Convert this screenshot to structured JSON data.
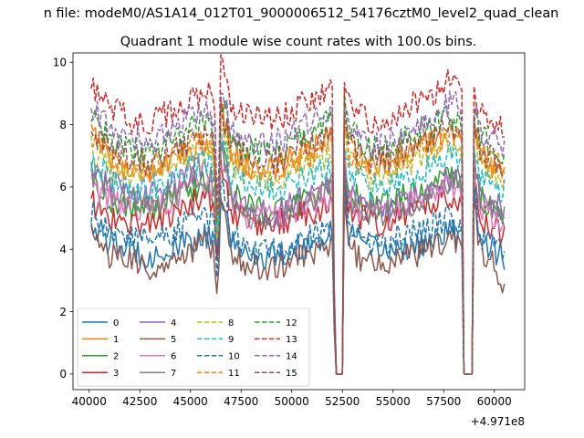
{
  "chart_data": {
    "type": "line",
    "suptitle": "n file: modeM0/AS1A14_012T01_9000006512_54176cztM0_level2_quad_clean",
    "title": "Quadrant 1 module wise count rates with 100.0s bins.",
    "xlabel": "",
    "ylabel": "",
    "x_offset_label": "+4.971e8",
    "xlim": [
      39200,
      61500
    ],
    "ylim": [
      -0.5,
      10.3
    ],
    "xticks": [
      40000,
      42500,
      45000,
      47500,
      50000,
      52500,
      55000,
      57500,
      60000
    ],
    "xtick_labels": [
      "40000",
      "42500",
      "45000",
      "47500",
      "50000",
      "52500",
      "55000",
      "57500",
      "60000"
    ],
    "yticks": [
      0,
      2,
      4,
      6,
      8,
      10
    ],
    "ytick_labels": [
      "0",
      "2",
      "4",
      "6",
      "8",
      "10"
    ],
    "grid": false,
    "legend_position": "lower-left",
    "legend_columns": 4,
    "x_start": 40100,
    "x_end": 60500,
    "bin_seconds": 100,
    "anchor_x": [
      40100,
      41000,
      42000,
      43000,
      44000,
      45000,
      45600,
      46000,
      46200,
      46350,
      46500,
      47000,
      48000,
      49000,
      50000,
      51000,
      52000,
      52050,
      52150,
      52300,
      52550,
      52600,
      52800,
      54000,
      55000,
      56000,
      57000,
      57800,
      58200,
      58400,
      58500,
      58950,
      59000,
      59300,
      60000,
      60500
    ],
    "series": [
      {
        "name": "0",
        "color": "#1f77b4",
        "dash": "solid",
        "values": [
          4.9,
          4.2,
          4.0,
          3.8,
          3.9,
          4.3,
          4.4,
          4.3,
          4.0,
          3.5,
          6.0,
          4.2,
          3.8,
          3.8,
          4.0,
          4.2,
          4.5,
          3.0,
          0.0,
          0.0,
          0.0,
          6.5,
          4.5,
          4.0,
          4.0,
          4.1,
          4.2,
          4.6,
          4.5,
          4.3,
          0.0,
          0.0,
          6.0,
          4.4,
          4.0,
          3.7
        ]
      },
      {
        "name": "1",
        "color": "#ff7f0e",
        "dash": "solid",
        "values": [
          8.0,
          7.0,
          6.5,
          6.5,
          6.8,
          7.2,
          7.4,
          7.3,
          6.8,
          4.0,
          8.5,
          7.2,
          6.6,
          6.6,
          6.9,
          7.3,
          7.6,
          5.0,
          0.0,
          0.0,
          0.0,
          8.4,
          7.4,
          6.6,
          6.9,
          7.2,
          7.5,
          7.8,
          7.7,
          7.4,
          0.0,
          0.0,
          8.0,
          7.0,
          6.7,
          6.5
        ]
      },
      {
        "name": "2",
        "color": "#2ca02c",
        "dash": "solid",
        "values": [
          6.3,
          5.6,
          5.3,
          5.3,
          5.5,
          5.9,
          6.1,
          6.0,
          5.6,
          3.8,
          7.5,
          5.8,
          5.3,
          5.2,
          5.4,
          5.7,
          6.0,
          4.5,
          0.0,
          0.0,
          0.0,
          7.2,
          5.8,
          5.4,
          5.6,
          5.8,
          6.1,
          6.3,
          6.2,
          6.0,
          0.0,
          0.0,
          7.0,
          5.6,
          5.3,
          5.0
        ]
      },
      {
        "name": "3",
        "color": "#d62728",
        "dash": "solid",
        "values": [
          5.5,
          5.0,
          4.8,
          4.9,
          5.0,
          5.5,
          5.6,
          5.5,
          5.0,
          3.2,
          6.8,
          5.2,
          4.8,
          4.8,
          5.0,
          5.2,
          5.5,
          4.0,
          0.0,
          0.0,
          0.0,
          6.6,
          5.3,
          4.8,
          5.0,
          5.2,
          5.5,
          5.7,
          5.6,
          5.4,
          0.0,
          0.0,
          6.4,
          5.0,
          4.7,
          4.5
        ]
      },
      {
        "name": "4",
        "color": "#9467bd",
        "dash": "solid",
        "values": [
          6.6,
          6.2,
          5.6,
          5.7,
          6.0,
          6.5,
          6.6,
          6.5,
          6.1,
          3.6,
          7.4,
          5.8,
          5.2,
          5.1,
          5.4,
          5.8,
          6.2,
          4.5,
          0.0,
          0.0,
          0.0,
          7.0,
          5.8,
          5.2,
          5.3,
          5.6,
          6.0,
          6.3,
          6.2,
          6.0,
          0.0,
          0.0,
          7.0,
          5.8,
          5.4,
          5.2
        ]
      },
      {
        "name": "5",
        "color": "#8c564b",
        "dash": "solid",
        "values": [
          4.5,
          3.8,
          3.6,
          3.4,
          3.5,
          4.0,
          4.2,
          4.1,
          3.6,
          2.2,
          5.5,
          3.8,
          3.4,
          3.4,
          3.6,
          3.9,
          4.2,
          2.8,
          0.0,
          0.0,
          0.0,
          6.0,
          4.0,
          3.5,
          3.6,
          3.8,
          4.0,
          4.3,
          4.2,
          4.0,
          0.0,
          0.0,
          5.8,
          3.9,
          3.6,
          2.6
        ]
      },
      {
        "name": "6",
        "color": "#e377c2",
        "dash": "solid",
        "values": [
          6.0,
          5.6,
          5.4,
          5.3,
          5.6,
          6.0,
          6.1,
          6.0,
          5.6,
          3.5,
          7.0,
          5.5,
          5.0,
          5.0,
          5.2,
          5.5,
          5.8,
          4.2,
          0.0,
          0.0,
          0.0,
          6.8,
          5.5,
          5.0,
          5.2,
          5.5,
          5.7,
          6.0,
          5.9,
          5.7,
          0.0,
          0.0,
          6.6,
          5.4,
          5.1,
          4.9
        ]
      },
      {
        "name": "7",
        "color": "#7f7f7f",
        "dash": "solid",
        "values": [
          6.4,
          5.9,
          5.6,
          5.5,
          5.8,
          6.2,
          6.3,
          6.2,
          5.8,
          3.4,
          7.2,
          5.6,
          5.1,
          5.0,
          5.3,
          5.6,
          5.9,
          4.3,
          0.0,
          0.0,
          0.0,
          6.9,
          5.6,
          5.1,
          5.3,
          5.5,
          5.8,
          6.1,
          6.0,
          5.8,
          0.0,
          0.0,
          6.8,
          5.5,
          5.2,
          5.0
        ]
      },
      {
        "name": "8",
        "color": "#bcbd22",
        "dash": "dashed",
        "values": [
          7.2,
          6.7,
          6.3,
          6.3,
          6.5,
          6.9,
          7.1,
          7.0,
          6.5,
          3.9,
          8.0,
          6.8,
          6.3,
          6.2,
          6.5,
          6.8,
          7.1,
          4.8,
          0.0,
          0.0,
          0.0,
          7.9,
          6.9,
          6.3,
          6.5,
          6.8,
          7.1,
          7.4,
          7.3,
          7.0,
          0.0,
          0.0,
          7.6,
          6.7,
          6.4,
          6.2
        ]
      },
      {
        "name": "9",
        "color": "#17becf",
        "dash": "dashed",
        "values": [
          6.9,
          6.3,
          6.0,
          6.0,
          6.2,
          6.6,
          6.8,
          6.7,
          6.2,
          3.8,
          7.6,
          6.4,
          6.0,
          5.9,
          6.1,
          6.4,
          6.7,
          4.6,
          0.0,
          0.0,
          0.0,
          7.4,
          6.5,
          6.0,
          6.1,
          6.4,
          6.7,
          7.0,
          6.9,
          6.6,
          0.0,
          0.0,
          7.2,
          6.3,
          6.0,
          5.8
        ]
      },
      {
        "name": "10",
        "color": "#1f77b4",
        "dash": "dashed",
        "values": [
          5.2,
          4.6,
          4.4,
          4.3,
          4.5,
          4.9,
          5.0,
          4.9,
          4.5,
          3.0,
          6.2,
          4.4,
          4.0,
          3.9,
          4.1,
          4.4,
          4.7,
          3.3,
          0.0,
          0.0,
          0.0,
          6.3,
          4.7,
          4.2,
          4.3,
          4.5,
          4.8,
          5.0,
          4.9,
          4.7,
          0.0,
          0.0,
          6.2,
          4.4,
          4.1,
          3.9
        ]
      },
      {
        "name": "11",
        "color": "#ff7f0e",
        "dash": "dashed",
        "values": [
          7.6,
          7.0,
          6.7,
          6.6,
          6.9,
          7.3,
          7.5,
          7.4,
          6.9,
          4.0,
          8.3,
          7.1,
          6.6,
          6.6,
          6.8,
          7.1,
          7.4,
          4.9,
          0.0,
          0.0,
          0.0,
          8.1,
          7.2,
          6.6,
          6.8,
          7.1,
          7.4,
          7.7,
          7.6,
          7.3,
          0.0,
          0.0,
          7.9,
          7.0,
          6.7,
          6.5
        ]
      },
      {
        "name": "12",
        "color": "#2ca02c",
        "dash": "dashed",
        "values": [
          8.3,
          7.6,
          7.2,
          7.1,
          7.4,
          7.9,
          8.1,
          8.0,
          7.4,
          4.1,
          8.8,
          7.6,
          7.2,
          7.1,
          7.4,
          7.8,
          8.1,
          5.2,
          0.0,
          0.0,
          0.0,
          8.6,
          7.8,
          7.2,
          7.4,
          7.7,
          8.0,
          8.3,
          8.2,
          7.9,
          0.0,
          0.0,
          8.4,
          7.6,
          7.3,
          7.0
        ]
      },
      {
        "name": "13",
        "color": "#d62728",
        "dash": "dashed",
        "values": [
          9.3,
          8.5,
          8.2,
          8.1,
          8.4,
          8.8,
          9.0,
          8.9,
          8.3,
          4.3,
          9.9,
          8.5,
          8.2,
          8.2,
          8.4,
          8.8,
          9.2,
          5.6,
          0.0,
          0.0,
          0.0,
          9.3,
          8.6,
          8.1,
          8.3,
          8.7,
          9.0,
          9.6,
          9.4,
          8.8,
          0.0,
          0.0,
          9.1,
          8.4,
          8.1,
          7.9
        ]
      },
      {
        "name": "14",
        "color": "#9467bd",
        "dash": "dashed",
        "values": [
          8.6,
          7.9,
          7.5,
          7.5,
          7.8,
          8.2,
          8.4,
          8.3,
          7.7,
          4.2,
          9.1,
          7.9,
          7.5,
          7.4,
          7.7,
          8.1,
          8.4,
          5.3,
          0.0,
          0.0,
          0.0,
          8.9,
          8.0,
          7.4,
          7.6,
          7.9,
          8.3,
          8.7,
          8.6,
          8.2,
          0.0,
          0.0,
          8.6,
          7.8,
          7.5,
          7.3
        ]
      },
      {
        "name": "15",
        "color": "#8c564b",
        "dash": "dashed",
        "values": [
          7.8,
          7.2,
          6.9,
          6.8,
          7.1,
          7.5,
          7.7,
          7.6,
          7.1,
          4.0,
          8.5,
          7.3,
          6.9,
          6.8,
          7.1,
          7.4,
          7.7,
          5.0,
          0.0,
          0.0,
          0.0,
          8.3,
          7.4,
          6.8,
          7.0,
          7.3,
          7.6,
          8.0,
          7.9,
          7.5,
          0.0,
          0.0,
          8.1,
          7.2,
          6.9,
          6.7
        ]
      }
    ]
  }
}
